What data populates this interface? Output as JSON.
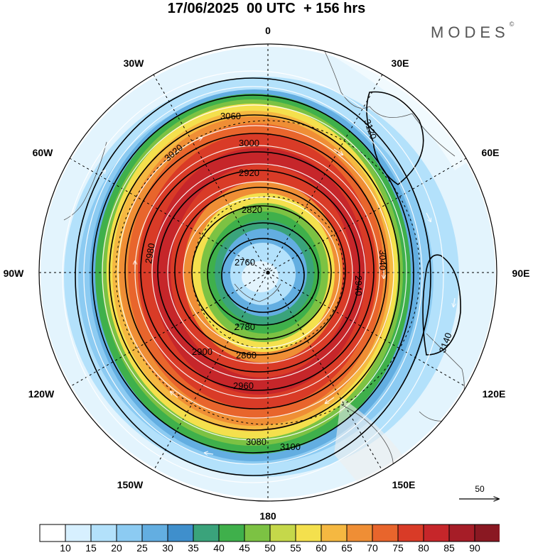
{
  "title": "17/06/2025  00 UTC  + 156 hrs",
  "brand": "MODES",
  "brand_mark": "©",
  "longitude_labels": [
    "0",
    "30E",
    "60E",
    "90E",
    "120E",
    "150E",
    "180",
    "150W",
    "120W",
    "90W",
    "60W",
    "30W"
  ],
  "contour_labels": [
    "2760",
    "2780",
    "2820",
    "2860",
    "2900",
    "2920",
    "2940",
    "2960",
    "2980",
    "3000",
    "3020",
    "3040",
    "3060",
    "3080",
    "3100",
    "3120",
    "3140"
  ],
  "vector_reference": {
    "value": "50"
  },
  "colorbar": {
    "ticks": [
      "10",
      "15",
      "20",
      "25",
      "30",
      "35",
      "40",
      "45",
      "50",
      "55",
      "60",
      "65",
      "70",
      "75",
      "80",
      "85",
      "90"
    ],
    "colors": [
      "#ffffff",
      "#d7f0ff",
      "#b3e1fb",
      "#8ccbf2",
      "#63aee1",
      "#3f8fcc",
      "#3aa37b",
      "#3fb04b",
      "#7cc243",
      "#c5d84a",
      "#f4e04d",
      "#f5b841",
      "#ef8e35",
      "#e8652c",
      "#d93b27",
      "#c6262a",
      "#a61d27",
      "#8a1822"
    ]
  }
}
